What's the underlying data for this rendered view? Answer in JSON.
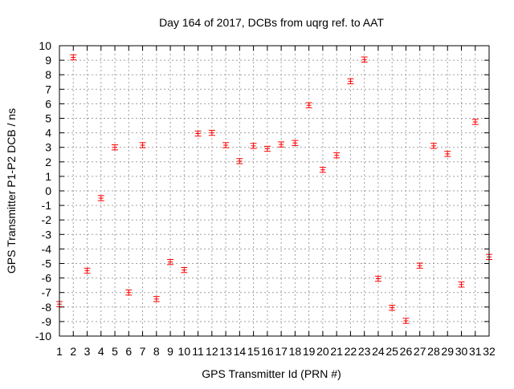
{
  "chart_data": {
    "type": "scatter",
    "title": "Day 164 of 2017, DCBs from uqrg ref. to AAT",
    "xlabel": "GPS Transmitter Id (PRN #)",
    "ylabel": "GPS Transmitter P1-P2 DCB / ns",
    "xlim": [
      1,
      32
    ],
    "ylim": [
      -10,
      10
    ],
    "grid": true,
    "x": [
      1,
      2,
      3,
      4,
      5,
      6,
      7,
      8,
      9,
      10,
      11,
      12,
      13,
      14,
      15,
      16,
      17,
      18,
      19,
      20,
      21,
      22,
      23,
      24,
      25,
      26,
      27,
      28,
      29,
      30,
      31,
      32
    ],
    "values": [
      -7.8,
      9.2,
      -5.5,
      -0.5,
      3.0,
      -7.0,
      3.15,
      -7.45,
      -4.9,
      -5.45,
      3.95,
      4.0,
      3.15,
      2.05,
      3.1,
      2.9,
      3.2,
      3.3,
      5.9,
      1.45,
      2.45,
      7.55,
      9.05,
      -6.05,
      -8.05,
      -8.95,
      -5.15,
      3.1,
      2.55,
      -6.45,
      4.75,
      -4.55
    ],
    "error": 0.12,
    "color": "#ff0000",
    "xticks": [
      "1",
      "2",
      "3",
      "4",
      "5",
      "6",
      "7",
      "8",
      "9",
      "10",
      "11",
      "12",
      "13",
      "14",
      "15",
      "16",
      "17",
      "18",
      "19",
      "20",
      "21",
      "22",
      "23",
      "24",
      "25",
      "26",
      "27",
      "28",
      "29",
      "30",
      "31",
      "32"
    ],
    "yticks": [
      "-10",
      "-9",
      "-8",
      "-7",
      "-6",
      "-5",
      "-4",
      "-3",
      "-2",
      "-1",
      "0",
      "1",
      "2",
      "3",
      "4",
      "5",
      "6",
      "7",
      "8",
      "9",
      "10"
    ]
  }
}
